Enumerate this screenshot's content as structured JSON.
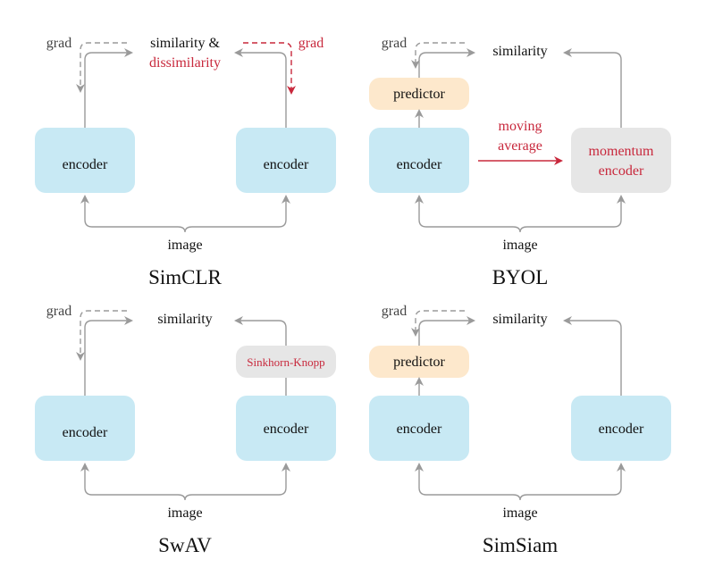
{
  "colors": {
    "encoder": "#c8e9f4",
    "predictor": "#fde8cc",
    "momentum": "#e6e6e6",
    "accent_red": "#c8283c",
    "arrow": "#9a9a9a"
  },
  "panels": [
    {
      "title": "SimCLR",
      "top": [
        "similarity &",
        "dissimilarity"
      ],
      "left_box": "encoder",
      "right_box": "encoder",
      "grad_left": "grad",
      "grad_right": "grad",
      "input": "image"
    },
    {
      "title": "BYOL",
      "top": "similarity",
      "predictor": "predictor",
      "left_box": "encoder",
      "right_box": [
        "momentum",
        "encoder"
      ],
      "mid": [
        "moving",
        "average"
      ],
      "grad_left": "grad",
      "input": "image"
    },
    {
      "title": "SwAV",
      "top": "similarity",
      "left_box": "encoder",
      "right_box": "encoder",
      "extra_box": "Sinkhorn-Knopp",
      "grad_left": "grad",
      "input": "image"
    },
    {
      "title": "SimSiam",
      "top": "similarity",
      "predictor": "predictor",
      "left_box": "encoder",
      "right_box": "encoder",
      "grad_left": "grad",
      "input": "image"
    }
  ]
}
